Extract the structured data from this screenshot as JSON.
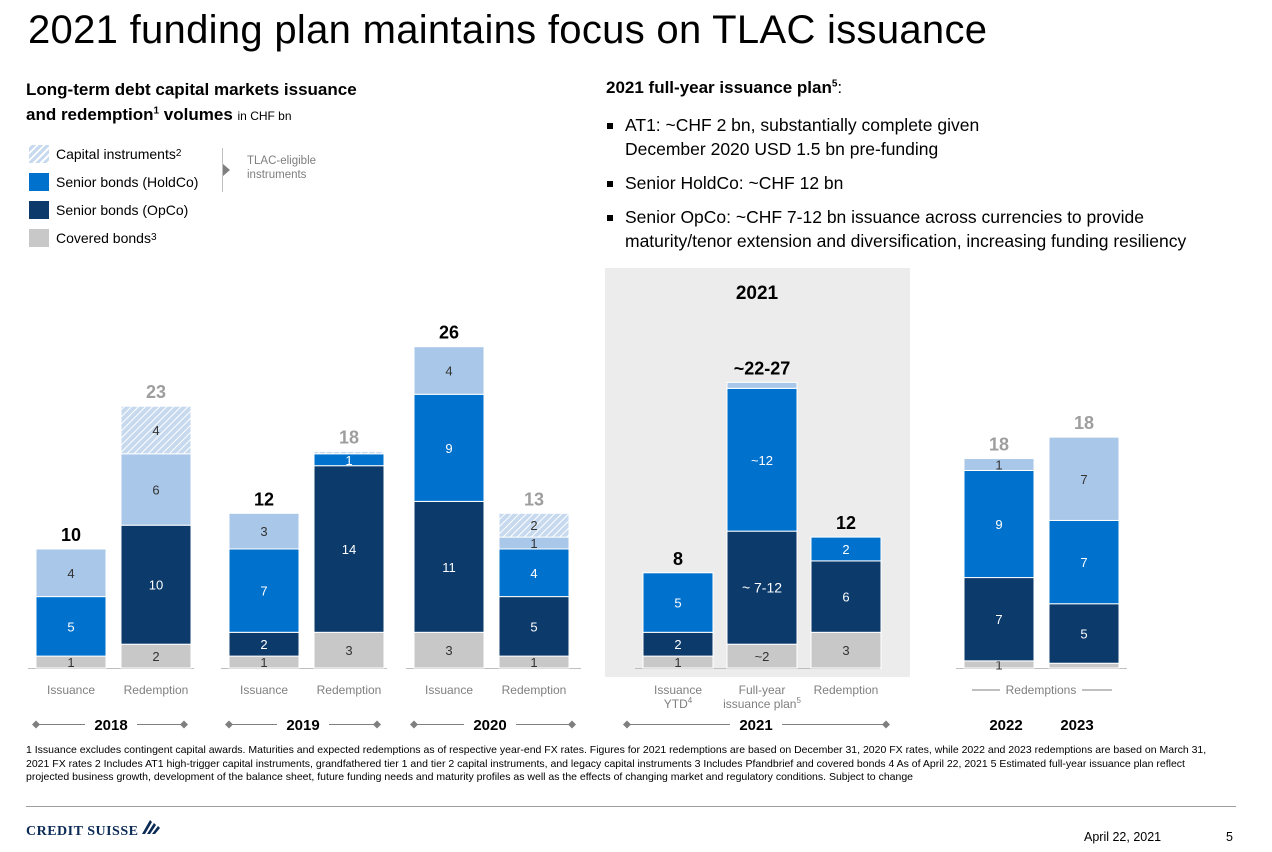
{
  "title": "2021 funding plan maintains focus on TLAC issuance",
  "left_heading": {
    "line1": "Long-term debt capital markets issuance",
    "line2": "and redemption",
    "line2_sup": "1",
    "line2_rest": " volumes",
    "unit": "in CHF bn"
  },
  "legend": [
    {
      "label": "Capital instruments",
      "sup": "2",
      "color": "#c6d9ee",
      "hatched": true
    },
    {
      "label": "Senior bonds (HoldCo)",
      "sup": "",
      "color": "#0072ce"
    },
    {
      "label": "Senior bonds (OpCo)",
      "sup": "",
      "color": "#0b3a6b"
    },
    {
      "label": "Covered bonds",
      "sup": "3",
      "color": "#c8c8c8"
    }
  ],
  "tlac_note": "TLAC-eligible instruments",
  "plan": {
    "heading": "2021 full-year issuance plan",
    "heading_sup": "5",
    "heading_colon": ":",
    "bullets": [
      {
        "line1": "AT1: ~CHF 2 bn, substantially complete given",
        "line2": "December 2020 USD 1.5 bn pre-funding"
      },
      {
        "line1": "Senior HoldCo: ~CHF 12 bn",
        "line2": ""
      },
      {
        "line1": "Senior OpCo: ~CHF 7-12 bn issuance across currencies to provide",
        "line2": "maturity/tenor extension and diversification, increasing funding resiliency"
      }
    ]
  },
  "chart_data": {
    "type": "bar",
    "stacked": true,
    "unit": "CHF bn",
    "highlight_group": "2021",
    "highlight_label": "2021",
    "series_colors": {
      "capital_hatched": "#c6d9ee",
      "capital": "#a9c7e8",
      "holdco": "#0072ce",
      "opco": "#0b3a6b",
      "covered": "#c8c8c8"
    },
    "bars": [
      {
        "group": "2018",
        "label": "Issuance",
        "total": "10",
        "segments": [
          {
            "s": "covered",
            "v": 1,
            "t": "1"
          },
          {
            "s": "holdco",
            "v": 5,
            "t": "5"
          },
          {
            "s": "capital",
            "v": 4,
            "t": "4"
          }
        ]
      },
      {
        "group": "2018",
        "label": "Redemption",
        "total": "23",
        "segments": [
          {
            "s": "covered",
            "v": 2,
            "t": "2"
          },
          {
            "s": "opco",
            "v": 10,
            "t": "10"
          },
          {
            "s": "capital",
            "v": 6,
            "t": "6"
          },
          {
            "s": "capital_hatched",
            "v": 4,
            "t": "4"
          }
        ]
      },
      {
        "group": "2019",
        "label": "Issuance",
        "total": "12",
        "segments": [
          {
            "s": "covered",
            "v": 1,
            "t": "1"
          },
          {
            "s": "opco",
            "v": 2,
            "t": "2"
          },
          {
            "s": "holdco",
            "v": 7,
            "t": "7"
          },
          {
            "s": "capital",
            "v": 3,
            "t": "3"
          }
        ]
      },
      {
        "group": "2019",
        "label": "Redemption",
        "total": "18",
        "segments": [
          {
            "s": "covered",
            "v": 3,
            "t": "3"
          },
          {
            "s": "opco",
            "v": 14,
            "t": "14"
          },
          {
            "s": "holdco",
            "v": 1,
            "t": "1"
          },
          {
            "s": "capital_hatched",
            "v": 0.2,
            "t": ""
          }
        ]
      },
      {
        "group": "2020",
        "label": "Issuance",
        "total": "26",
        "segments": [
          {
            "s": "covered",
            "v": 3,
            "t": "3"
          },
          {
            "s": "opco",
            "v": 11,
            "t": "11"
          },
          {
            "s": "holdco",
            "v": 9,
            "t": "9"
          },
          {
            "s": "capital",
            "v": 4,
            "t": "4"
          }
        ]
      },
      {
        "group": "2020",
        "label": "Redemption",
        "total": "13",
        "segments": [
          {
            "s": "covered",
            "v": 1,
            "t": "1"
          },
          {
            "s": "opco",
            "v": 5,
            "t": "5"
          },
          {
            "s": "holdco",
            "v": 4,
            "t": "4"
          },
          {
            "s": "capital",
            "v": 1,
            "t": "1"
          },
          {
            "s": "capital_hatched",
            "v": 2,
            "t": "2"
          }
        ]
      },
      {
        "group": "2021",
        "label": "Issuance YTD",
        "label_sup": "4",
        "total": "8",
        "segments": [
          {
            "s": "covered",
            "v": 1,
            "t": "1"
          },
          {
            "s": "opco",
            "v": 2,
            "t": "2"
          },
          {
            "s": "holdco",
            "v": 5,
            "t": "5"
          }
        ]
      },
      {
        "group": "2021",
        "label": "Full-year issuance plan",
        "label_sup": "5",
        "total": "~22-27",
        "segments": [
          {
            "s": "covered",
            "v": 2,
            "t": "~2"
          },
          {
            "s": "opco",
            "v": 9.5,
            "t": "~ 7-12"
          },
          {
            "s": "holdco",
            "v": 12,
            "t": "~12"
          },
          {
            "s": "capital",
            "v": 0.5,
            "t": ""
          }
        ]
      },
      {
        "group": "2021",
        "label": "Redemption",
        "total": "12",
        "segments": [
          {
            "s": "covered",
            "v": 3,
            "t": "3"
          },
          {
            "s": "opco",
            "v": 6,
            "t": "6"
          },
          {
            "s": "holdco",
            "v": 2,
            "t": "2"
          }
        ]
      },
      {
        "group": "2022",
        "label": "",
        "total": "18",
        "segments": [
          {
            "s": "covered",
            "v": 0.6,
            "t": "1"
          },
          {
            "s": "opco",
            "v": 7,
            "t": "7"
          },
          {
            "s": "holdco",
            "v": 9,
            "t": "9"
          },
          {
            "s": "capital",
            "v": 1,
            "t": "1"
          }
        ]
      },
      {
        "group": "2023",
        "label": "",
        "total": "18",
        "segments": [
          {
            "s": "covered",
            "v": 0.4,
            "t": ""
          },
          {
            "s": "opco",
            "v": 5,
            "t": "5"
          },
          {
            "s": "holdco",
            "v": 7,
            "t": "7"
          },
          {
            "s": "capital",
            "v": 7,
            "t": "7"
          }
        ]
      }
    ],
    "groups": [
      {
        "name": "2018",
        "bracketed": true
      },
      {
        "name": "2019",
        "bracketed": true
      },
      {
        "name": "2020",
        "bracketed": true
      },
      {
        "name": "2021",
        "bracketed": true
      },
      {
        "name": "2022",
        "bracketed": false
      },
      {
        "name": "2023",
        "bracketed": false
      }
    ],
    "redemptions_bracket_label": "Redemptions"
  },
  "footnote": "1 Issuance excludes contingent capital awards. Maturities and expected redemptions as of respective year-end FX rates. Figures for 2021 redemptions are based on December 31, 2020 FX rates, while 2022 and 2023 redemptions are based on March 31, 2021 FX rates    2 Includes AT1 high-trigger capital instruments, grandfathered tier 1 and tier 2 capital instruments, and legacy capital instruments    3 Includes Pfandbrief and covered bonds    4 As of April 22, 2021    5 Estimated full-year issuance plan reflect projected business growth, development of the balance sheet, future funding needs and maturity profiles as well as the effects of changing market and regulatory conditions. Subject to change",
  "logo_text": "CREDIT SUISSE",
  "date": "April 22, 2021",
  "page_number": "5"
}
